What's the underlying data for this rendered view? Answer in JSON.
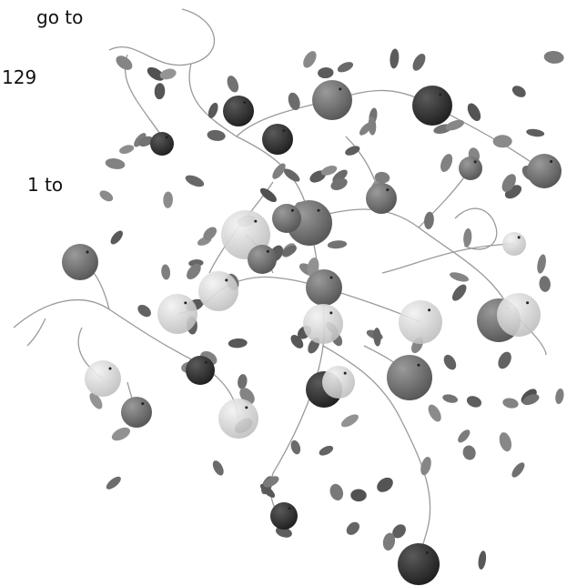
{
  "text_fragments": [
    "go to",
    "129",
    "1 to"
  ]
}
